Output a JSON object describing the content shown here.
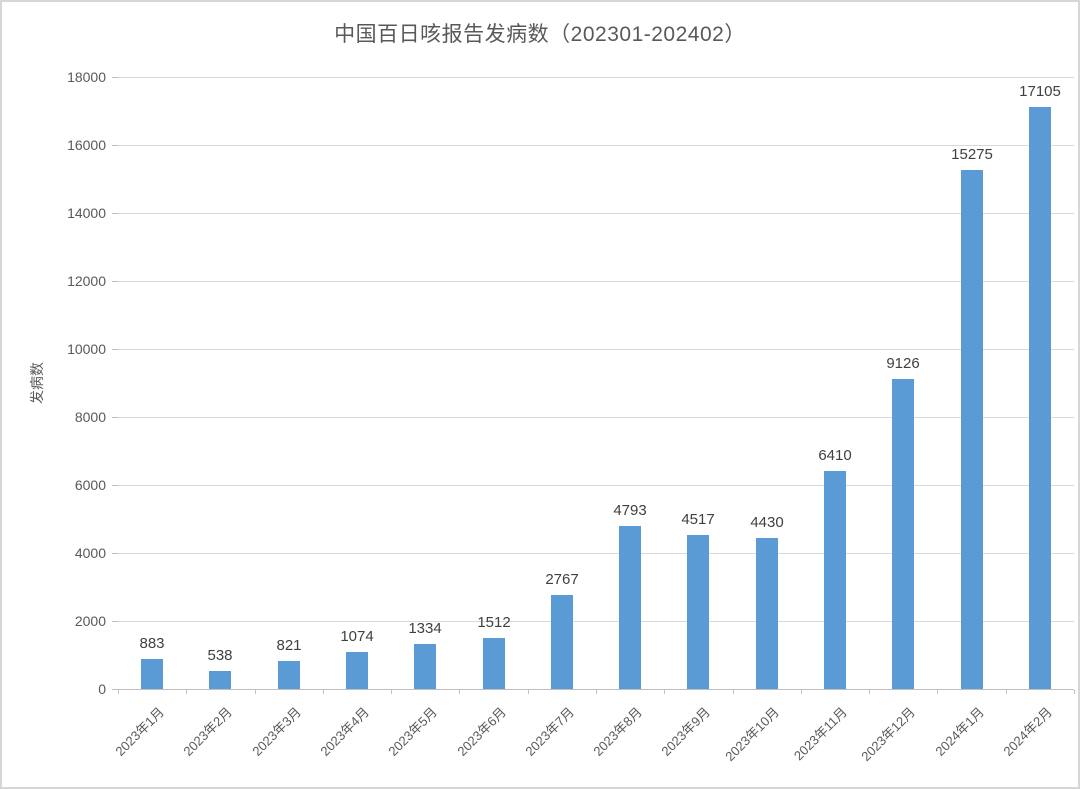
{
  "chart_data": {
    "type": "bar",
    "title": "中国百日咳报告发病数（202301-202402）",
    "xlabel": "",
    "ylabel": "发病数",
    "categories": [
      "2023年1月",
      "2023年2月",
      "2023年3月",
      "2023年4月",
      "2023年5月",
      "2023年6月",
      "2023年7月",
      "2023年8月",
      "2023年9月",
      "2023年10月",
      "2023年11月",
      "2023年12月",
      "2024年1月",
      "2024年2月"
    ],
    "values": [
      883,
      538,
      821,
      1074,
      1334,
      1512,
      2767,
      4793,
      4517,
      4430,
      6410,
      9126,
      15275,
      17105
    ],
    "ylim": [
      0,
      18000
    ],
    "yticks": [
      0,
      2000,
      4000,
      6000,
      8000,
      10000,
      12000,
      14000,
      16000,
      18000
    ],
    "grid": true,
    "legend": "none",
    "data_labels": true,
    "colors": {
      "bar": "#5b9bd5",
      "gridline": "#d9d9d9",
      "axis_line": "#bfbfbf",
      "title_text": "#595959",
      "tick_text": "#595959",
      "data_label_text": "#404040"
    }
  }
}
